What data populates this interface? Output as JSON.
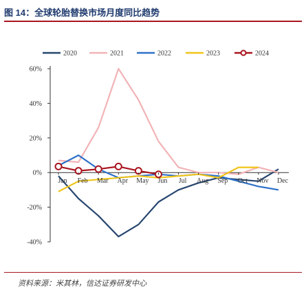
{
  "figure": {
    "title": "图 14：全球轮胎替换市场月度同比趋势",
    "source": "资料来源：米其林，信达证券研发中心"
  },
  "chart_data": {
    "type": "line",
    "categories": [
      "Jan",
      "Feb",
      "Mar",
      "Apr",
      "May",
      "Jun",
      "Jul",
      "Aug",
      "Sep",
      "Oct",
      "Nov",
      "Dec"
    ],
    "y_ticks": [
      "60%",
      "40%",
      "20%",
      "0%",
      "-20%",
      "-40%"
    ],
    "ylim": [
      -40,
      60
    ],
    "legend_position": "top",
    "series": [
      {
        "name": "2020",
        "color": "#27466f",
        "marker": false,
        "values": [
          -2,
          -15,
          -25,
          -37,
          -30,
          -17,
          -10,
          -6,
          -3,
          -4,
          -5,
          2
        ]
      },
      {
        "name": "2021",
        "color": "#f2b3b6",
        "marker": false,
        "values": [
          7,
          6,
          26,
          60,
          42,
          18,
          3,
          0,
          0,
          -1,
          3,
          0
        ]
      },
      {
        "name": "2022",
        "color": "#2e70c8",
        "marker": false,
        "values": [
          4,
          10,
          2,
          -3,
          -2,
          -1,
          -2,
          -1,
          -2,
          -5,
          -8,
          -10
        ]
      },
      {
        "name": "2023",
        "color": "#f0c419",
        "marker": false,
        "values": [
          -11,
          -5,
          -4,
          -3,
          -2,
          -3,
          -2,
          -1,
          -3,
          3,
          3,
          null
        ]
      },
      {
        "name": "2024",
        "color": "#a9151f",
        "marker": true,
        "values": [
          3.5,
          1,
          2,
          3.5,
          1,
          -1,
          null,
          null,
          null,
          null,
          null,
          null
        ]
      }
    ]
  }
}
